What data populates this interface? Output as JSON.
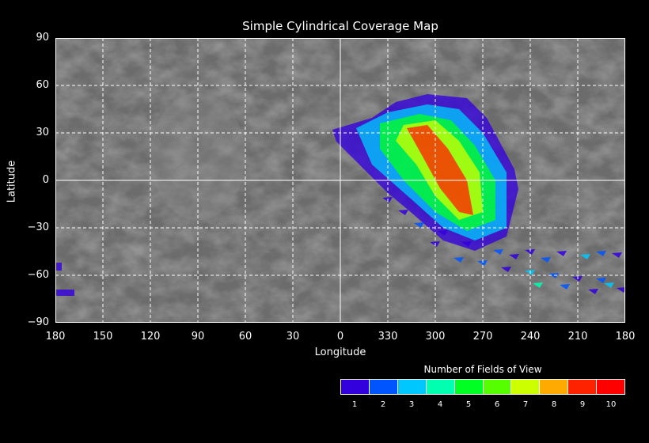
{
  "title": "Simple Cylindrical Coverage Map",
  "xlabel": "Longitude",
  "ylabel": "Latitude",
  "x_ticks": [
    "180",
    "150",
    "120",
    "90",
    "60",
    "30",
    "0",
    "330",
    "300",
    "270",
    "240",
    "210",
    "180"
  ],
  "y_ticks": [
    "90",
    "60",
    "30",
    "0",
    "−30",
    "−60",
    "−90"
  ],
  "legend": {
    "title": "Number of Fields of View",
    "labels": [
      "1",
      "2",
      "3",
      "4",
      "5",
      "6",
      "7",
      "8",
      "9",
      "10"
    ],
    "colors": [
      "#3300dd",
      "#0055ff",
      "#00c8ff",
      "#00ffb0",
      "#00ff22",
      "#55ff00",
      "#ccff00",
      "#ffaa00",
      "#ff2200",
      "#ff0000"
    ]
  },
  "chart_data": {
    "type": "map",
    "projection": "simple cylindrical",
    "x_range_west_longitude": [
      180,
      0,
      180
    ],
    "y_range_latitude": [
      -90,
      90
    ],
    "grid": true,
    "coverage_regions": [
      {
        "count": 1,
        "points": [
          [
            5,
            32
          ],
          [
            340,
            39.5
          ],
          [
            325,
            49.5
          ],
          [
            305,
            54.5
          ],
          [
            280,
            52
          ],
          [
            267.5,
            39.5
          ],
          [
            250,
            7
          ],
          [
            247.5,
            -5.5
          ],
          [
            255,
            -35.5
          ],
          [
            275,
            -44.5
          ],
          [
            295,
            -38
          ],
          [
            315,
            -20.5
          ],
          [
            330,
            -8
          ],
          [
            347.5,
            9.5
          ],
          [
            2.5,
            24.5
          ]
        ]
      },
      {
        "count": 3,
        "points": [
          [
            350,
            33
          ],
          [
            330,
            43
          ],
          [
            305,
            48
          ],
          [
            285,
            45
          ],
          [
            270,
            30
          ],
          [
            255,
            5
          ],
          [
            255,
            -30
          ],
          [
            275,
            -38
          ],
          [
            295,
            -30
          ],
          [
            315,
            -12
          ],
          [
            340,
            10
          ]
        ]
      },
      {
        "count": 5,
        "points": [
          [
            335,
            36
          ],
          [
            310,
            42
          ],
          [
            290,
            38
          ],
          [
            275,
            22
          ],
          [
            262,
            0
          ],
          [
            262,
            -25
          ],
          [
            280,
            -32
          ],
          [
            300,
            -20
          ],
          [
            320,
            0
          ],
          [
            335,
            20
          ]
        ]
      },
      {
        "count": 7,
        "points": [
          [
            320,
            35
          ],
          [
            300,
            38
          ],
          [
            285,
            25
          ],
          [
            272,
            5
          ],
          [
            270,
            -20
          ],
          [
            285,
            -25
          ],
          [
            300,
            -10
          ],
          [
            312,
            10
          ],
          [
            325,
            25
          ]
        ]
      },
      {
        "count": 9,
        "points": [
          [
            318,
            33
          ],
          [
            305,
            35
          ],
          [
            292,
            20
          ],
          [
            280,
            0
          ],
          [
            276,
            -22
          ],
          [
            285,
            -20
          ],
          [
            297,
            -5
          ],
          [
            308,
            15
          ]
        ]
      }
    ],
    "scattered_footprints": [
      [
        330,
        -12,
        1
      ],
      [
        320,
        -20,
        1
      ],
      [
        310,
        -28,
        2
      ],
      [
        295,
        -33,
        1
      ],
      [
        280,
        -40,
        1
      ],
      [
        260,
        -45,
        2
      ],
      [
        250,
        -48,
        1
      ],
      [
        240,
        -45,
        1
      ],
      [
        230,
        -50,
        2
      ],
      [
        220,
        -46,
        1
      ],
      [
        205,
        -48,
        3
      ],
      [
        195,
        -46,
        2
      ],
      [
        185,
        -47,
        1
      ],
      [
        270,
        -52,
        2
      ],
      [
        255,
        -56,
        1
      ],
      [
        240,
        -58,
        3
      ],
      [
        225,
        -60,
        2
      ],
      [
        210,
        -62,
        1
      ],
      [
        195,
        -63,
        2
      ],
      [
        235,
        -66,
        4
      ],
      [
        218,
        -67,
        2
      ],
      [
        200,
        -70,
        1
      ],
      [
        190,
        -66,
        3
      ],
      [
        182,
        -69,
        1
      ],
      [
        300,
        -40,
        1
      ],
      [
        285,
        -50,
        2
      ]
    ],
    "edge_regions": [
      {
        "count": 1,
        "points": [
          [
            180,
            -52
          ],
          [
            176,
            -52
          ],
          [
            176,
            -57
          ],
          [
            180,
            -57
          ]
        ]
      },
      {
        "count": 1,
        "points": [
          [
            180,
            -69
          ],
          [
            168,
            -69
          ],
          [
            168,
            -73
          ],
          [
            180,
            -73
          ]
        ]
      }
    ]
  }
}
